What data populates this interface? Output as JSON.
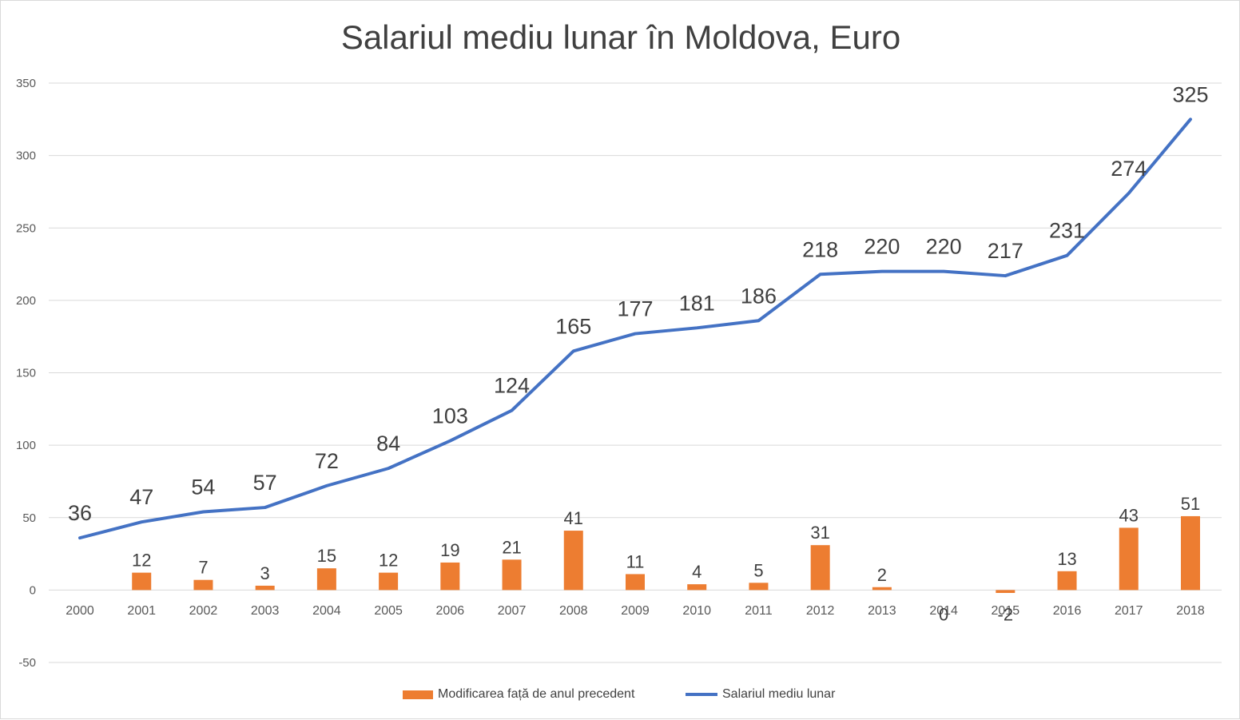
{
  "chart_data": {
    "type": "bar+line",
    "title": "Salariul mediu lunar în Moldova, Euro",
    "xlabel": "",
    "ylabel": "",
    "ylim": [
      -50,
      350
    ],
    "yticks": [
      -50,
      0,
      50,
      100,
      150,
      200,
      250,
      300,
      350
    ],
    "grid": true,
    "legend_position": "bottom",
    "categories": [
      "2000",
      "2001",
      "2002",
      "2003",
      "2004",
      "2005",
      "2006",
      "2007",
      "2008",
      "2009",
      "2010",
      "2011",
      "2012",
      "2013",
      "2014",
      "2015",
      "2016",
      "2017",
      "2018"
    ],
    "series": [
      {
        "name": "Modificarea față de anul precedent",
        "kind": "bar",
        "color": "#ed7d31",
        "values": [
          null,
          12,
          7,
          3,
          15,
          12,
          19,
          21,
          41,
          11,
          4,
          5,
          31,
          2,
          0,
          -2,
          13,
          43,
          51
        ]
      },
      {
        "name": "Salariul mediu lunar",
        "kind": "line",
        "color": "#4472c4",
        "values": [
          36,
          47,
          54,
          57,
          72,
          84,
          103,
          124,
          165,
          177,
          181,
          186,
          218,
          220,
          220,
          217,
          231,
          274,
          325
        ]
      }
    ]
  },
  "colors": {
    "grid": "#d9d9d9",
    "text": "#404040",
    "axis_text": "#595959"
  }
}
